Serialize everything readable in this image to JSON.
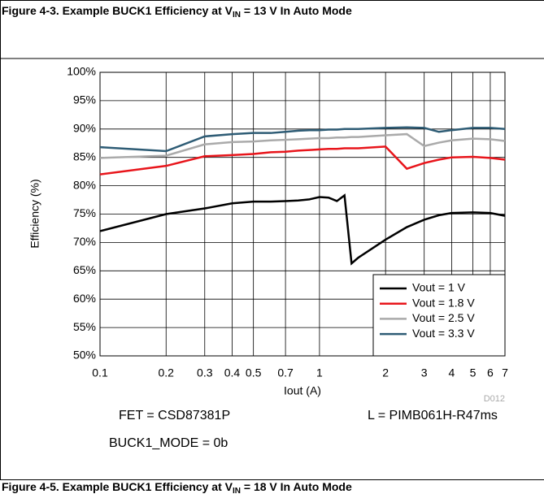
{
  "chart_data": {
    "type": "line",
    "caption_top": [
      "Figure 4-3. Example BUCK1 Efficiency at V",
      "IN",
      " = 13 V In Auto Mode"
    ],
    "caption_bottom": [
      "Figure 4-5. Example BUCK1 Efficiency at V",
      "IN",
      " = 18 V In Auto Mode"
    ],
    "xlabel": "Iout (A)",
    "ylabel": "Efficiency (%)",
    "code": "D012",
    "notes": [
      "FET = CSD87381P",
      "L = PIMB061H-R47ms",
      "BUCK1_MODE = 0b"
    ],
    "xscale": "log",
    "grid": true,
    "legend": "lower right",
    "xlim": [
      0.1,
      7
    ],
    "ylim": [
      50,
      100
    ],
    "xticks": [
      0.1,
      0.2,
      0.3,
      0.4,
      0.5,
      0.7,
      1,
      2,
      3,
      4,
      5,
      6,
      7
    ],
    "yticks": [
      {
        "value": 50,
        "label": "50%"
      },
      {
        "value": 55,
        "label": "55%"
      },
      {
        "value": 60,
        "label": "60%"
      },
      {
        "value": 65,
        "label": "65%"
      },
      {
        "value": 70,
        "label": "70%"
      },
      {
        "value": 75,
        "label": "75%"
      },
      {
        "value": 80,
        "label": "80%"
      },
      {
        "value": 85,
        "label": "85%"
      },
      {
        "value": 90,
        "label": "90%"
      },
      {
        "value": 95,
        "label": "95%"
      },
      {
        "value": 100,
        "label": "100%"
      }
    ],
    "x": [
      0.1,
      0.2,
      0.3,
      0.4,
      0.5,
      0.6,
      0.7,
      0.8,
      0.9,
      1,
      1.1,
      1.2,
      1.3,
      1.4,
      1.5,
      2,
      2.5,
      3,
      3.5,
      4,
      5,
      6,
      7
    ],
    "series": [
      {
        "name": "Vout = 1 V",
        "color": "#000000",
        "values": [
          72,
          75,
          76,
          76.9,
          77.2,
          77.2,
          77.3,
          77.4,
          77.6,
          78,
          77.9,
          77.3,
          78.3,
          66.3,
          67.3,
          70.5,
          72.7,
          74,
          74.8,
          75.2,
          75.3,
          75.2,
          74.7
        ]
      },
      {
        "name": "Vout = 1.8 V",
        "color": "#e8151b",
        "values": [
          82,
          83.5,
          85.2,
          85.4,
          85.6,
          85.9,
          86,
          86.2,
          86.3,
          86.4,
          86.5,
          86.5,
          86.6,
          86.6,
          86.6,
          86.9,
          83,
          84,
          84.6,
          85,
          85.1,
          84.9,
          84.6
        ]
      },
      {
        "name": "Vout = 2.5 V",
        "color": "#aaaaaa",
        "values": [
          84.9,
          85.3,
          87.3,
          87.7,
          87.8,
          88,
          88.1,
          88.2,
          88.3,
          88.4,
          88.4,
          88.5,
          88.5,
          88.6,
          88.6,
          88.9,
          89.1,
          87,
          87.6,
          88,
          88.3,
          88.2,
          87.9
        ]
      },
      {
        "name": "Vout = 3.3 V",
        "color": "#2e5c75",
        "values": [
          86.8,
          86.1,
          88.7,
          89.1,
          89.3,
          89.3,
          89.5,
          89.7,
          89.8,
          89.8,
          89.9,
          89.9,
          90,
          90,
          90,
          90.2,
          90.3,
          90.2,
          89.5,
          89.8,
          90.2,
          90.2,
          90
        ]
      }
    ]
  }
}
